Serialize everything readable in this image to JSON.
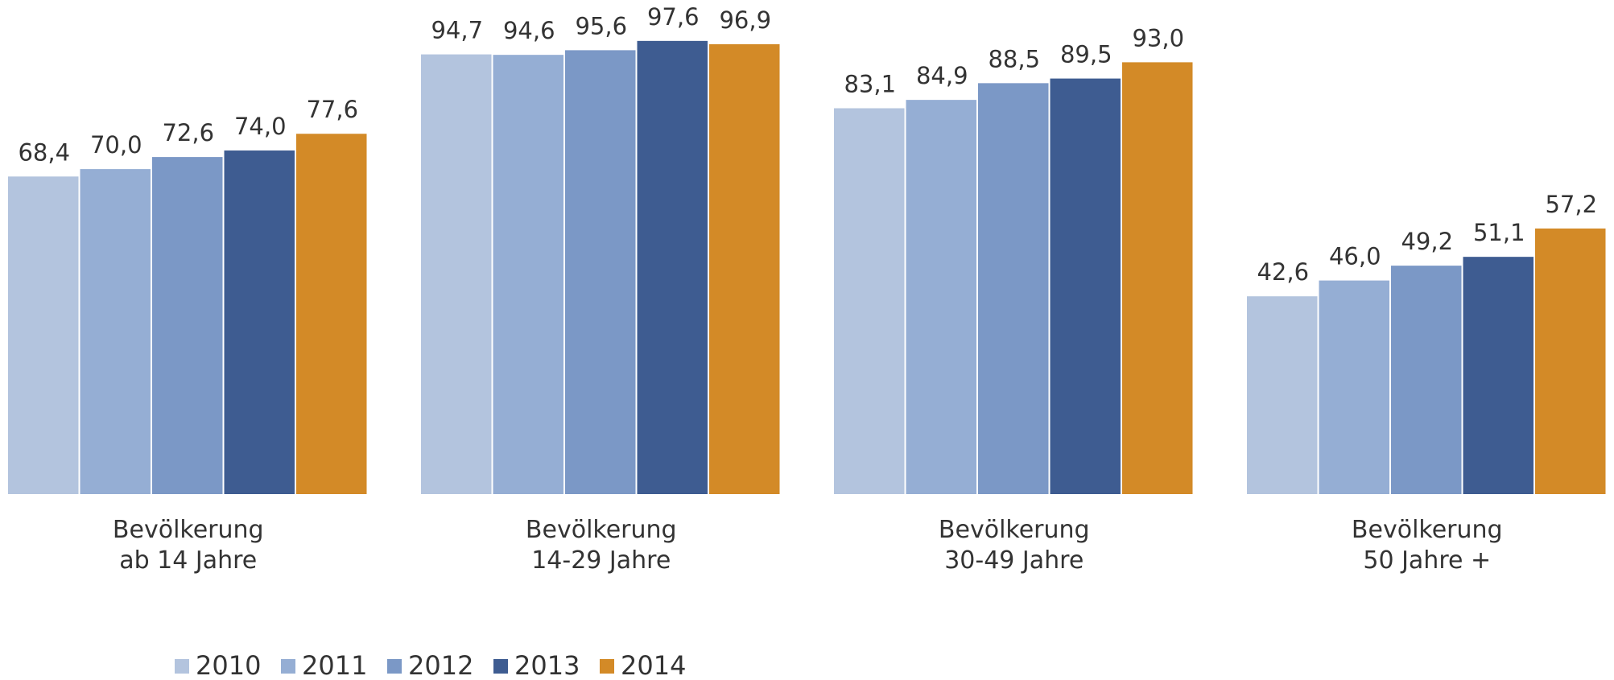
{
  "chart_data": {
    "type": "bar",
    "categories": [
      [
        "Bevölkerung",
        "ab 14 Jahre"
      ],
      [
        "Bevölkerung",
        "14-29 Jahre"
      ],
      [
        "Bevölkerung",
        "30-49 Jahre"
      ],
      [
        "Bevölkerung",
        "50 Jahre +"
      ]
    ],
    "ylim": [
      0,
      100
    ],
    "series": [
      {
        "name": "2010",
        "color": "#b3c4de",
        "values": [
          68.4,
          94.7,
          83.1,
          42.6
        ],
        "value_labels": [
          "68,4",
          "94,7",
          "83,1",
          "42,6"
        ]
      },
      {
        "name": "2011",
        "color": "#95aed4",
        "values": [
          70.0,
          94.6,
          84.9,
          46.0
        ],
        "value_labels": [
          "70,0",
          "94,6",
          "84,9",
          "46,0"
        ]
      },
      {
        "name": "2012",
        "color": "#7b98c6",
        "values": [
          72.6,
          95.6,
          88.5,
          49.2
        ],
        "value_labels": [
          "72,6",
          "95,6",
          "88,5",
          "49,2"
        ]
      },
      {
        "name": "2013",
        "color": "#3e5c91",
        "values": [
          74.0,
          97.6,
          89.5,
          51.1
        ],
        "value_labels": [
          "74,0",
          "97,6",
          "89,5",
          "51,1"
        ]
      },
      {
        "name": "2014",
        "color": "#d38a27",
        "values": [
          77.6,
          96.9,
          93.0,
          57.2
        ],
        "value_labels": [
          "77,6",
          "96,9",
          "93,0",
          "57,2"
        ]
      }
    ]
  }
}
